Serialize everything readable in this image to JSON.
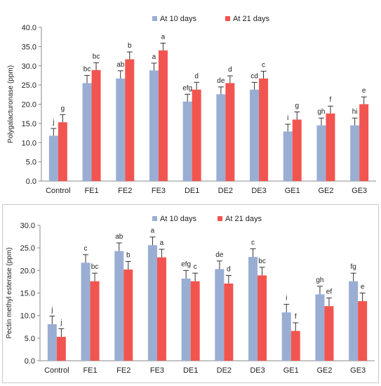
{
  "chart_data": [
    {
      "type": "bar",
      "ylabel": "Polygalacturonase (ppm)",
      "ylim": [
        0,
        40
      ],
      "yticks": [
        "0.0",
        "5.0",
        "10.0",
        "15.0",
        "20.0",
        "25.0",
        "30.0",
        "35.0",
        "40.0"
      ],
      "legend_position": "top",
      "grid": false,
      "categories": [
        "Control",
        "FE1",
        "FE2",
        "FE3",
        "DE1",
        "DE2",
        "DE3",
        "GE1",
        "GE2",
        "GE3"
      ],
      "series": [
        {
          "name": "At 10 days",
          "color": "#9aaed4",
          "values": [
            11.8,
            25.5,
            26.7,
            28.8,
            20.7,
            22.6,
            23.8,
            12.9,
            14.5,
            14.5
          ],
          "errors": [
            1.9,
            2.0,
            2.0,
            1.9,
            1.9,
            1.9,
            1.9,
            1.9,
            1.9,
            1.9
          ],
          "labels": [
            "j",
            "bc",
            "ab",
            "a",
            "efg",
            "de",
            "cd",
            "i",
            "gh",
            "hi"
          ]
        },
        {
          "name": "At 21 days",
          "color": "#f2554f",
          "values": [
            15.3,
            28.9,
            31.7,
            34.0,
            23.8,
            25.5,
            26.7,
            16.0,
            17.6,
            20.0
          ],
          "errors": [
            2.0,
            1.9,
            1.9,
            1.9,
            1.9,
            1.9,
            1.9,
            2.0,
            1.9,
            1.9
          ],
          "labels": [
            "g",
            "bc",
            "b",
            "a",
            "d",
            "d",
            "c",
            "g",
            "f",
            "e"
          ]
        }
      ]
    },
    {
      "type": "bar",
      "ylabel": "Pectin methyl esterase (ppm)",
      "ylim": [
        0,
        30
      ],
      "yticks": [
        "0.0",
        "5.0",
        "10.0",
        "15.0",
        "20.0",
        "25.0",
        "30.0"
      ],
      "legend_position": "top",
      "grid": false,
      "categories": [
        "Control",
        "FE1",
        "FE2",
        "FE3",
        "DE1",
        "DE2",
        "DE3",
        "GE1",
        "GE2",
        "GE3"
      ],
      "series": [
        {
          "name": "At 10 days",
          "color": "#9aaed4",
          "values": [
            8.1,
            21.7,
            24.3,
            25.6,
            18.2,
            20.3,
            23.0,
            10.7,
            14.7,
            17.6
          ],
          "errors": [
            1.8,
            1.8,
            1.8,
            1.8,
            1.8,
            1.8,
            1.8,
            1.8,
            1.8,
            1.8
          ],
          "labels": [
            "j",
            "c",
            "ab",
            "a",
            "efg",
            "de",
            "c",
            "i",
            "gh",
            "fg"
          ]
        },
        {
          "name": "At 21 days",
          "color": "#f2554f",
          "values": [
            5.3,
            17.6,
            20.2,
            22.9,
            17.6,
            17.1,
            18.9,
            6.6,
            12.1,
            13.2
          ],
          "errors": [
            1.8,
            1.8,
            1.8,
            1.8,
            1.8,
            1.8,
            1.8,
            1.8,
            1.8,
            1.8
          ],
          "labels": [
            "j",
            "bc",
            "b",
            "a",
            "c",
            "d",
            "bc",
            "f",
            "ef",
            "e"
          ]
        }
      ]
    }
  ]
}
